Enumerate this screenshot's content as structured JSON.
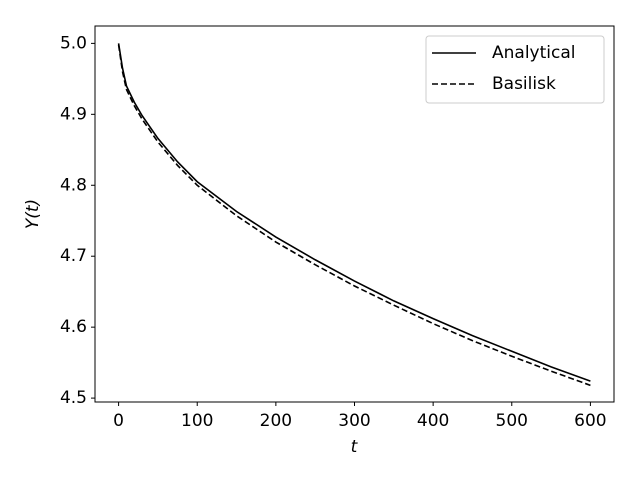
{
  "chart_data": {
    "type": "line",
    "x_label": "t",
    "y_label": "Y(t)",
    "x": [
      0,
      5,
      10,
      20,
      30,
      50,
      75,
      100,
      150,
      200,
      250,
      300,
      350,
      400,
      450,
      500,
      550,
      600
    ],
    "series": [
      {
        "name": "Analytical",
        "color": "#000000",
        "dash": "solid",
        "values": [
          5.0,
          4.965,
          4.94,
          4.917,
          4.898,
          4.866,
          4.833,
          4.805,
          4.763,
          4.727,
          4.695,
          4.665,
          4.637,
          4.612,
          4.588,
          4.566,
          4.544,
          4.524
        ]
      },
      {
        "name": "Basilisk",
        "color": "#000000",
        "dash": "dashed",
        "values": [
          4.998,
          4.96,
          4.935,
          4.912,
          4.893,
          4.861,
          4.828,
          4.8,
          4.757,
          4.72,
          4.688,
          4.658,
          4.631,
          4.605,
          4.581,
          4.559,
          4.538,
          4.518
        ]
      }
    ],
    "xlim": [
      -30,
      630
    ],
    "ylim": [
      4.4945,
      5.0245
    ],
    "xticks": [
      0,
      100,
      200,
      300,
      400,
      500,
      600
    ],
    "yticks": [
      4.5,
      4.6,
      4.7,
      4.8,
      4.9,
      {
        "value": 5,
        "label": "5.0"
      }
    ],
    "grid": false,
    "legend": "upper right"
  }
}
